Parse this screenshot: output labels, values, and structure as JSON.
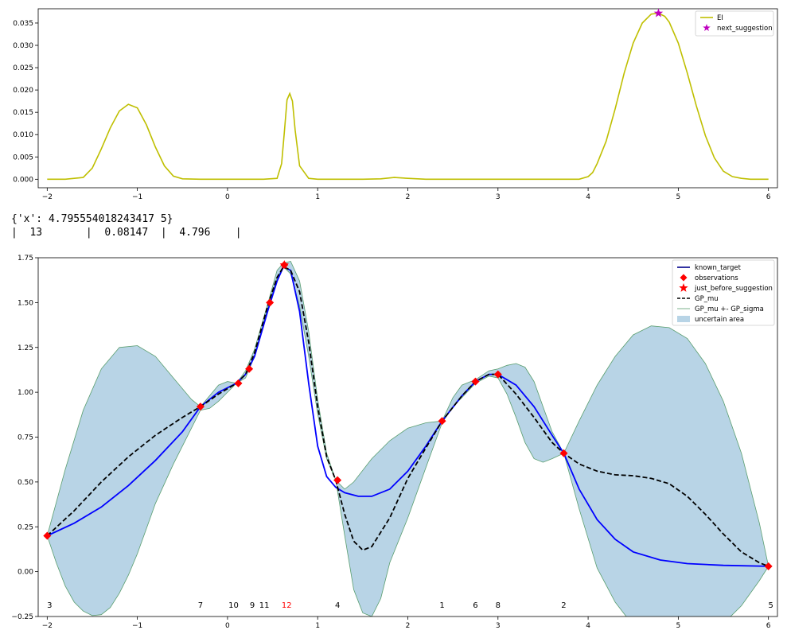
{
  "output": {
    "line1": "{'x': 4.795554018243417 5}",
    "line2": "|  13       |  0.08147  |  4.796    |"
  },
  "chart_data": [
    {
      "type": "line",
      "name": "ei-chart",
      "xlim": [
        -2.1,
        6.1
      ],
      "ylim": [
        -0.0019,
        0.0382
      ],
      "xticks": [
        -2,
        -1,
        0,
        1,
        2,
        3,
        4,
        5,
        6
      ],
      "yticks": [
        0.0,
        0.005,
        0.01,
        0.015,
        0.02,
        0.025,
        0.03,
        0.035
      ],
      "ytick_labels": [
        "0.000",
        "0.005",
        "0.010",
        "0.015",
        "0.020",
        "0.025",
        "0.030",
        "0.035"
      ],
      "grid": false,
      "legend_position": "top-right",
      "legend": [
        "EI",
        "next_suggestion"
      ],
      "series": [
        {
          "name": "EI",
          "color": "#bfbf00",
          "x": [
            -2,
            -1.8,
            -1.6,
            -1.5,
            -1.4,
            -1.3,
            -1.2,
            -1.1,
            -1.0,
            -0.9,
            -0.8,
            -0.7,
            -0.6,
            -0.5,
            -0.3,
            0,
            0.4,
            0.55,
            0.6,
            0.63,
            0.66,
            0.69,
            0.72,
            0.75,
            0.8,
            0.9,
            1.0,
            1.5,
            1.7,
            1.85,
            2.0,
            2.2,
            3.0,
            3.9,
            4.0,
            4.05,
            4.1,
            4.2,
            4.3,
            4.4,
            4.5,
            4.6,
            4.7,
            4.78,
            4.85,
            4.9,
            5.0,
            5.1,
            5.2,
            5.3,
            5.4,
            5.5,
            5.6,
            5.7,
            5.8,
            5.9,
            6.0
          ],
          "y": [
            0,
            0,
            0.0004,
            0.0025,
            0.0068,
            0.0115,
            0.0153,
            0.0168,
            0.016,
            0.0122,
            0.0072,
            0.003,
            0.0007,
            0.0001,
            0,
            0,
            0,
            0.0002,
            0.0035,
            0.0105,
            0.0178,
            0.0192,
            0.0175,
            0.011,
            0.003,
            0.0002,
            0,
            0,
            0.0001,
            0.0004,
            0.0002,
            0,
            0,
            0,
            0.0006,
            0.0015,
            0.0035,
            0.0085,
            0.0158,
            0.0238,
            0.0305,
            0.035,
            0.037,
            0.0372,
            0.0365,
            0.0352,
            0.0305,
            0.0238,
            0.0165,
            0.0098,
            0.0048,
            0.0018,
            0.0006,
            0.0002,
            0,
            0,
            0
          ]
        }
      ],
      "markers": [
        {
          "name": "next_suggestion",
          "color": "#bf00bf",
          "x": 4.78,
          "y": 0.0372
        }
      ]
    },
    {
      "type": "line",
      "name": "gp-chart",
      "xlim": [
        -2.1,
        6.1
      ],
      "ylim": [
        -0.25,
        1.75
      ],
      "xticks": [
        -2,
        -1,
        0,
        1,
        2,
        3,
        4,
        5,
        6
      ],
      "yticks": [
        -0.25,
        0.0,
        0.25,
        0.5,
        0.75,
        1.0,
        1.25,
        1.5,
        1.75
      ],
      "ytick_labels": [
        "-0.25",
        "0.00",
        "0.25",
        "0.50",
        "0.75",
        "1.00",
        "1.25",
        "1.50",
        "1.75"
      ],
      "grid": false,
      "legend_position": "top-right",
      "legend": [
        "known_target",
        "observations",
        "just_before_suggestion",
        "GP_mu",
        "GP_mu +- GP_sigma",
        "uncertain area"
      ],
      "colors": {
        "known_target": "#0000ff",
        "observations": "#ff0000",
        "GP_mu": "#000000",
        "sigma_line": "#5a9e6f",
        "uncertain_fill": "#b8d4e6",
        "highlight_label": "#ff0000"
      },
      "known_target": {
        "x": [
          -2,
          -1.7,
          -1.4,
          -1.1,
          -0.8,
          -0.5,
          -0.3,
          -0.1,
          0.1,
          0.2,
          0.3,
          0.45,
          0.55,
          0.62,
          0.7,
          0.8,
          0.9,
          1.0,
          1.1,
          1.2,
          1.3,
          1.45,
          1.6,
          1.8,
          2.0,
          2.2,
          2.38,
          2.6,
          2.75,
          2.9,
          3.0,
          3.2,
          3.4,
          3.6,
          3.73,
          3.9,
          4.1,
          4.3,
          4.5,
          4.8,
          5.1,
          5.5,
          6.0
        ],
        "y": [
          0.2,
          0.27,
          0.36,
          0.48,
          0.62,
          0.78,
          0.92,
          1.0,
          1.05,
          1.1,
          1.2,
          1.46,
          1.62,
          1.7,
          1.68,
          1.45,
          1.05,
          0.7,
          0.53,
          0.47,
          0.44,
          0.42,
          0.42,
          0.46,
          0.56,
          0.7,
          0.84,
          0.98,
          1.06,
          1.1,
          1.1,
          1.04,
          0.92,
          0.76,
          0.66,
          0.46,
          0.29,
          0.18,
          0.11,
          0.065,
          0.045,
          0.035,
          0.03
        ]
      },
      "gp_mu": {
        "x": [
          -2,
          -1.7,
          -1.4,
          -1.1,
          -0.8,
          -0.5,
          -0.3,
          -0.1,
          0.1,
          0.2,
          0.3,
          0.45,
          0.55,
          0.62,
          0.7,
          0.8,
          0.9,
          1.0,
          1.1,
          1.2,
          1.3,
          1.4,
          1.5,
          1.6,
          1.8,
          2.0,
          2.2,
          2.38,
          2.6,
          2.75,
          2.9,
          3.0,
          3.2,
          3.4,
          3.6,
          3.73,
          3.9,
          4.1,
          4.3,
          4.5,
          4.7,
          4.9,
          5.1,
          5.3,
          5.5,
          5.7,
          5.9,
          6.0
        ],
        "y": [
          0.2,
          0.34,
          0.5,
          0.64,
          0.76,
          0.86,
          0.92,
          0.99,
          1.05,
          1.1,
          1.22,
          1.49,
          1.64,
          1.7,
          1.68,
          1.56,
          1.28,
          0.92,
          0.64,
          0.51,
          0.32,
          0.17,
          0.12,
          0.14,
          0.3,
          0.52,
          0.69,
          0.84,
          0.98,
          1.06,
          1.1,
          1.1,
          0.99,
          0.86,
          0.72,
          0.66,
          0.6,
          0.56,
          0.54,
          0.535,
          0.52,
          0.49,
          0.42,
          0.32,
          0.21,
          0.11,
          0.05,
          0.03
        ]
      },
      "sigma_upper": {
        "x": [
          -2,
          -1.8,
          -1.6,
          -1.4,
          -1.2,
          -1.0,
          -0.8,
          -0.6,
          -0.4,
          -0.3,
          -0.2,
          -0.1,
          0.0,
          0.1,
          0.2,
          0.3,
          0.45,
          0.55,
          0.62,
          0.7,
          0.8,
          0.9,
          1.0,
          1.1,
          1.2,
          1.3,
          1.4,
          1.6,
          1.8,
          2.0,
          2.2,
          2.38,
          2.5,
          2.6,
          2.75,
          2.9,
          3.0,
          3.1,
          3.2,
          3.3,
          3.4,
          3.5,
          3.6,
          3.73,
          3.9,
          4.1,
          4.3,
          4.5,
          4.7,
          4.9,
          5.1,
          5.3,
          5.5,
          5.7,
          5.9,
          6.0
        ],
        "y": [
          0.2,
          0.57,
          0.9,
          1.13,
          1.25,
          1.26,
          1.2,
          1.08,
          0.96,
          0.92,
          0.98,
          1.04,
          1.06,
          1.05,
          1.12,
          1.24,
          1.5,
          1.68,
          1.72,
          1.73,
          1.62,
          1.34,
          0.96,
          0.66,
          0.51,
          0.46,
          0.5,
          0.63,
          0.73,
          0.8,
          0.83,
          0.84,
          0.97,
          1.04,
          1.07,
          1.12,
          1.13,
          1.15,
          1.16,
          1.14,
          1.06,
          0.92,
          0.78,
          0.66,
          0.84,
          1.04,
          1.2,
          1.32,
          1.37,
          1.36,
          1.3,
          1.16,
          0.95,
          0.66,
          0.27,
          0.03
        ]
      },
      "sigma_lower": {
        "x": [
          -2,
          -1.9,
          -1.8,
          -1.7,
          -1.6,
          -1.5,
          -1.4,
          -1.3,
          -1.2,
          -1.1,
          -1.0,
          -0.9,
          -0.8,
          -0.6,
          -0.4,
          -0.3,
          -0.2,
          -0.1,
          0.0,
          0.1,
          0.2,
          0.3,
          0.45,
          0.55,
          0.62,
          0.7,
          0.8,
          0.9,
          1.0,
          1.1,
          1.2,
          1.3,
          1.4,
          1.5,
          1.6,
          1.7,
          1.8,
          2.0,
          2.2,
          2.38,
          2.5,
          2.6,
          2.75,
          2.9,
          3.0,
          3.1,
          3.2,
          3.3,
          3.4,
          3.5,
          3.6,
          3.73,
          3.9,
          4.1,
          4.3,
          4.5,
          4.7,
          4.9,
          5.1,
          5.3,
          5.5,
          5.7,
          5.9,
          6.0
        ],
        "y": [
          0.2,
          0.05,
          -0.08,
          -0.17,
          -0.22,
          -0.245,
          -0.24,
          -0.2,
          -0.12,
          -0.02,
          0.1,
          0.24,
          0.38,
          0.6,
          0.8,
          0.9,
          0.91,
          0.95,
          1.0,
          1.05,
          1.08,
          1.2,
          1.48,
          1.64,
          1.7,
          1.66,
          1.48,
          1.2,
          0.88,
          0.63,
          0.51,
          0.2,
          -0.1,
          -0.23,
          -0.25,
          -0.15,
          0.05,
          0.3,
          0.58,
          0.83,
          0.92,
          0.97,
          1.05,
          1.09,
          1.08,
          0.99,
          0.86,
          0.72,
          0.63,
          0.61,
          0.63,
          0.66,
          0.35,
          0.02,
          -0.17,
          -0.3,
          -0.35,
          -0.38,
          -0.39,
          -0.36,
          -0.29,
          -0.19,
          -0.05,
          0.03
        ]
      },
      "observations": [
        {
          "x": -2.0,
          "y": 0.2,
          "label": "3"
        },
        {
          "x": -0.3,
          "y": 0.92,
          "label": "7"
        },
        {
          "x": 0.12,
          "y": 1.05,
          "label": "10"
        },
        {
          "x": 0.24,
          "y": 1.13,
          "label": "9"
        },
        {
          "x": 0.47,
          "y": 1.5,
          "label": "11"
        },
        {
          "x": 0.63,
          "y": 1.71,
          "label": "12"
        },
        {
          "x": 1.22,
          "y": 0.51,
          "label": "4"
        },
        {
          "x": 2.38,
          "y": 0.84,
          "label": "1"
        },
        {
          "x": 2.75,
          "y": 1.06,
          "label": "6"
        },
        {
          "x": 3.0,
          "y": 1.1,
          "label": "8"
        },
        {
          "x": 3.73,
          "y": 0.66,
          "label": "2"
        },
        {
          "x": 6.0,
          "y": 0.03,
          "label": "5"
        }
      ],
      "just_before_suggestion": {
        "x": 0.63,
        "y": 1.71
      },
      "highlight_label": "12"
    }
  ]
}
